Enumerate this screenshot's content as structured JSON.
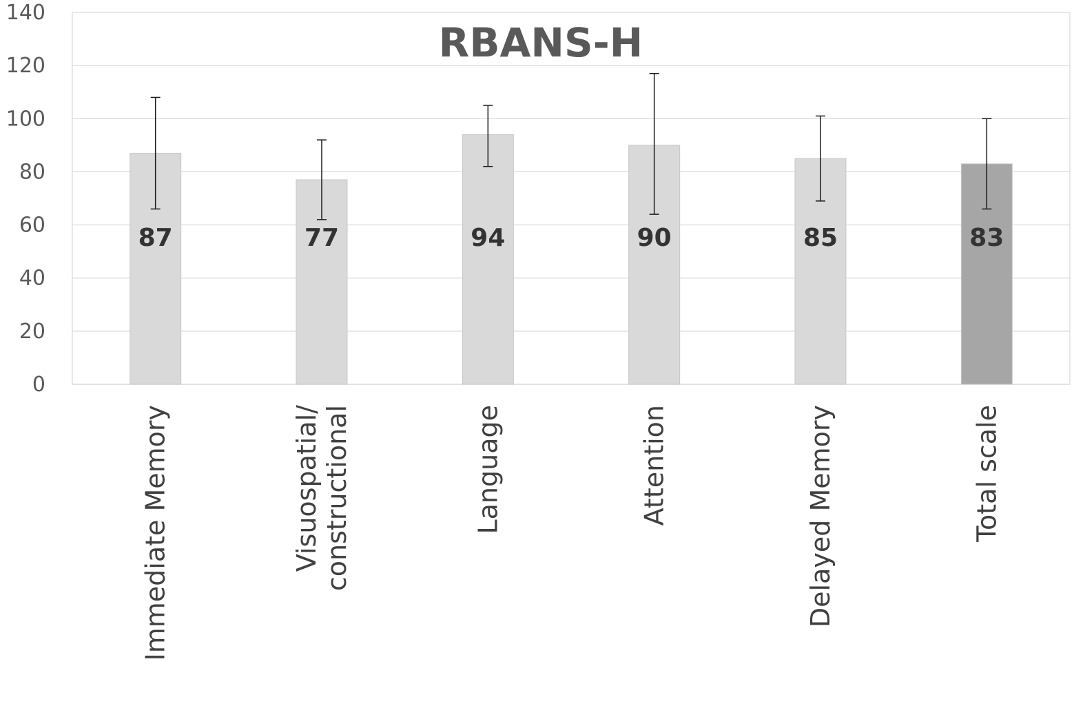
{
  "chart_data": {
    "type": "bar",
    "title": "RBANS-H",
    "xlabel": "",
    "ylabel": "",
    "ylim": [
      0,
      140
    ],
    "yticks": [
      0,
      20,
      40,
      60,
      80,
      100,
      120,
      140
    ],
    "grid": true,
    "legend": "none",
    "categories": [
      [
        "Immediate Memory"
      ],
      [
        "Visuospatial/",
        "constructional"
      ],
      [
        "Language"
      ],
      [
        "Attention"
      ],
      [
        "Delayed Memory"
      ],
      [
        "Total scale"
      ]
    ],
    "values": [
      87,
      77,
      94,
      90,
      85,
      83
    ],
    "error_low": [
      66,
      62,
      82,
      64,
      69,
      66
    ],
    "error_high": [
      108,
      92,
      105,
      117,
      101,
      100
    ],
    "data_labels": [
      "87",
      "77",
      "94",
      "90",
      "85",
      "83"
    ],
    "bar_colors": [
      "#d9d9d9",
      "#d9d9d9",
      "#d9d9d9",
      "#d9d9d9",
      "#d9d9d9",
      "#a6a6a6"
    ],
    "gridline_color": "#d9d9d9",
    "error_bar_color": "#1a1a1a"
  }
}
